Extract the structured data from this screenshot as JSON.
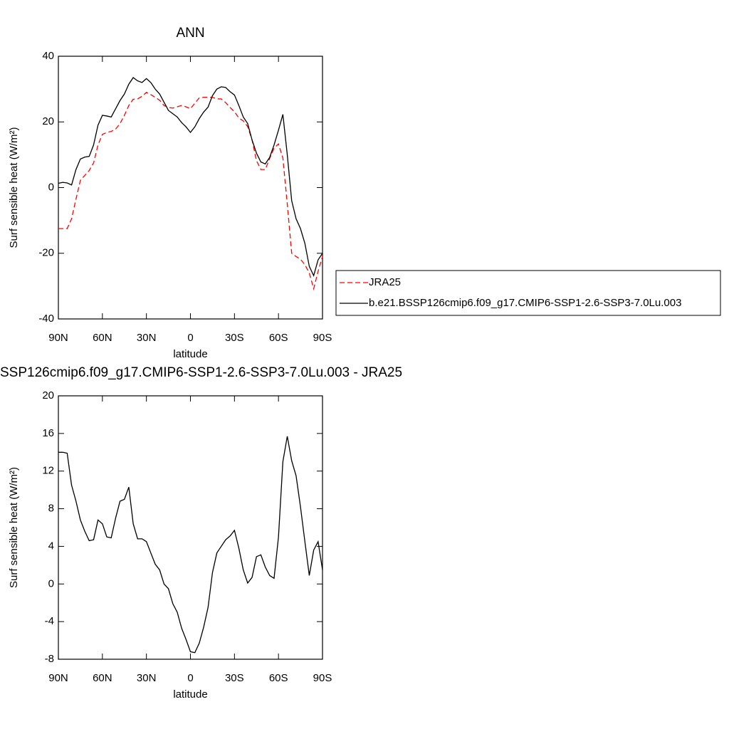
{
  "chart_data": [
    {
      "type": "line",
      "title": "ANN",
      "xlabel": "latitude",
      "ylabel": "Surf sensible heat (W/m²)",
      "x": [
        90,
        87,
        84,
        81,
        78,
        75,
        72,
        69,
        66,
        63,
        60,
        57,
        54,
        51,
        48,
        45,
        42,
        39,
        36,
        33,
        30,
        27,
        24,
        21,
        18,
        15,
        12,
        9,
        6,
        3,
        0,
        -3,
        -6,
        -9,
        -12,
        -15,
        -18,
        -21,
        -24,
        -27,
        -30,
        -33,
        -36,
        -39,
        -42,
        -45,
        -48,
        -51,
        -54,
        -57,
        -60,
        -63,
        -66,
        -69,
        -72,
        -75,
        -78,
        -81,
        -84,
        -87,
        -90
      ],
      "series": [
        {
          "name": "JRA25",
          "color": "#ff0000",
          "style": "dashed",
          "values": [
            -12.5,
            -12.5,
            -12.5,
            -9.5,
            -3.5,
            2.2,
            3.7,
            5.2,
            7.5,
            13,
            16.2,
            16.8,
            17.1,
            17.8,
            19.5,
            22,
            25,
            26.9,
            27,
            27.8,
            29,
            28.3,
            27.5,
            26.6,
            25,
            24.4,
            24.2,
            24.6,
            25,
            24.6,
            24,
            25.7,
            27.3,
            27.5,
            27.5,
            27.5,
            27,
            27,
            25.9,
            24.4,
            23.1,
            21.2,
            20.3,
            18.6,
            14.5,
            8.2,
            5.5,
            5.5,
            8.9,
            12,
            13.3,
            9,
            -5,
            -20,
            -21,
            -21.8,
            -23.5,
            -26,
            -30.8,
            -25.5,
            -21
          ]
        },
        {
          "name": "b.e21.BSSP126cmip6.f09_g17.CMIP6-SSP1-2.6-SSP3-7.0Lu.003",
          "color": "#000000",
          "style": "solid",
          "values": [
            1.3,
            1.6,
            1.4,
            0.8,
            5.5,
            8.7,
            9.3,
            9.5,
            13,
            19,
            22,
            21.8,
            21.5,
            24,
            26.5,
            28.5,
            31.5,
            33.5,
            32.5,
            32,
            33.2,
            32,
            30,
            28.5,
            26,
            23.5,
            22.5,
            21.5,
            19.8,
            18.5,
            16.8,
            18.5,
            21,
            23,
            24.5,
            28,
            30,
            30.7,
            30.5,
            29.2,
            28.2,
            25,
            21.5,
            19.5,
            14.5,
            10.5,
            7.8,
            7.2,
            9.2,
            13,
            17.5,
            22.3,
            10,
            -4,
            -9.5,
            -12.5,
            -17,
            -24,
            -26.8,
            -22,
            -20
          ]
        }
      ],
      "xlim": [
        90,
        -90
      ],
      "xticks": [
        {
          "value": 90,
          "label": "90N"
        },
        {
          "value": 60,
          "label": "60N"
        },
        {
          "value": 30,
          "label": "30N"
        },
        0,
        {
          "value": -30,
          "label": "30S"
        },
        {
          "value": -60,
          "label": "60S"
        },
        {
          "value": -90,
          "label": "90S"
        }
      ],
      "ylim": [
        -40,
        40
      ],
      "yticks": [
        -40,
        -20,
        0,
        20,
        40
      ],
      "legend": "right"
    },
    {
      "type": "line",
      "title": "SSP126cmip6.f09_g17.CMIP6-SSP1-2.6-SSP3-7.0Lu.003 - JRA25",
      "xlabel": "latitude",
      "ylabel": "Surf sensible heat (W/m²)",
      "x": [
        90,
        87,
        84,
        81,
        78,
        75,
        72,
        69,
        66,
        63,
        60,
        57,
        54,
        51,
        48,
        45,
        42,
        39,
        36,
        33,
        30,
        27,
        24,
        21,
        18,
        15,
        12,
        9,
        6,
        3,
        0,
        -3,
        -6,
        -9,
        -12,
        -15,
        -18,
        -21,
        -24,
        -27,
        -30,
        -33,
        -36,
        -39,
        -42,
        -45,
        -48,
        -51,
        -54,
        -57,
        -60,
        -63,
        -66,
        -69,
        -72,
        -75,
        -78,
        -81,
        -84,
        -87,
        -90
      ],
      "values": [
        14,
        14,
        13.9,
        10.5,
        8.8,
        6.8,
        5.6,
        4.6,
        4.7,
        6.8,
        6.4,
        5,
        4.9,
        7,
        8.8,
        9,
        10.3,
        6.4,
        4.8,
        4.8,
        4.5,
        3.3,
        2.1,
        1.5,
        0,
        -0.5,
        -2.1,
        -3,
        -4.7,
        -5.9,
        -7.2,
        -7.3,
        -6.3,
        -4.6,
        -2.5,
        1.2,
        3.3,
        4,
        4.7,
        5.1,
        5.7,
        3.8,
        1.5,
        0.1,
        0.7,
        2.9,
        3.1,
        1.8,
        0.9,
        0.6,
        5,
        13,
        15.7,
        13.1,
        11.5,
        8.2,
        4.5,
        0.9,
        3.6,
        4.5,
        1.5
      ],
      "color": "#000000",
      "xlim": [
        90,
        -90
      ],
      "xticks": [
        {
          "value": 90,
          "label": "90N"
        },
        {
          "value": 60,
          "label": "60N"
        },
        {
          "value": 30,
          "label": "30N"
        },
        0,
        {
          "value": -30,
          "label": "30S"
        },
        {
          "value": -60,
          "label": "60S"
        },
        {
          "value": -90,
          "label": "90S"
        }
      ],
      "ylim": [
        -8,
        20
      ],
      "yticks": [
        -8,
        -4,
        0,
        4,
        8,
        12,
        16,
        20
      ]
    }
  ]
}
